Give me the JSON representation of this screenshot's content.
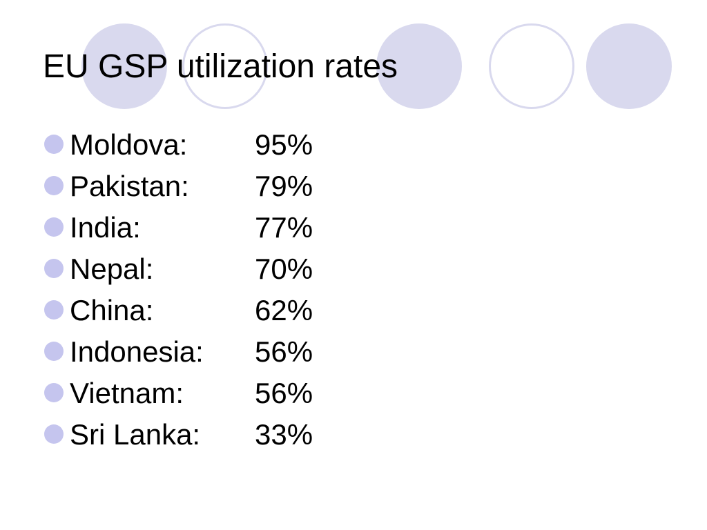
{
  "slide": {
    "title": "EU GSP utilization rates",
    "accent_color": "#d9d9ee",
    "bullet_color": "#c5c5ee",
    "bullet_icon": "circle-bullet",
    "items": [
      {
        "country": "Moldova:",
        "rate": "95%"
      },
      {
        "country": "Pakistan:",
        "rate": "79%"
      },
      {
        "country": "India:",
        "rate": "77%"
      },
      {
        "country": "Nepal:",
        "rate": "70%"
      },
      {
        "country": "China:",
        "rate": "62%"
      },
      {
        "country": "Indonesia:",
        "rate": "56%"
      },
      {
        "country": "Vietnam:",
        "rate": "56%"
      },
      {
        "country": "Sri Lanka:",
        "rate": "33%"
      }
    ]
  }
}
